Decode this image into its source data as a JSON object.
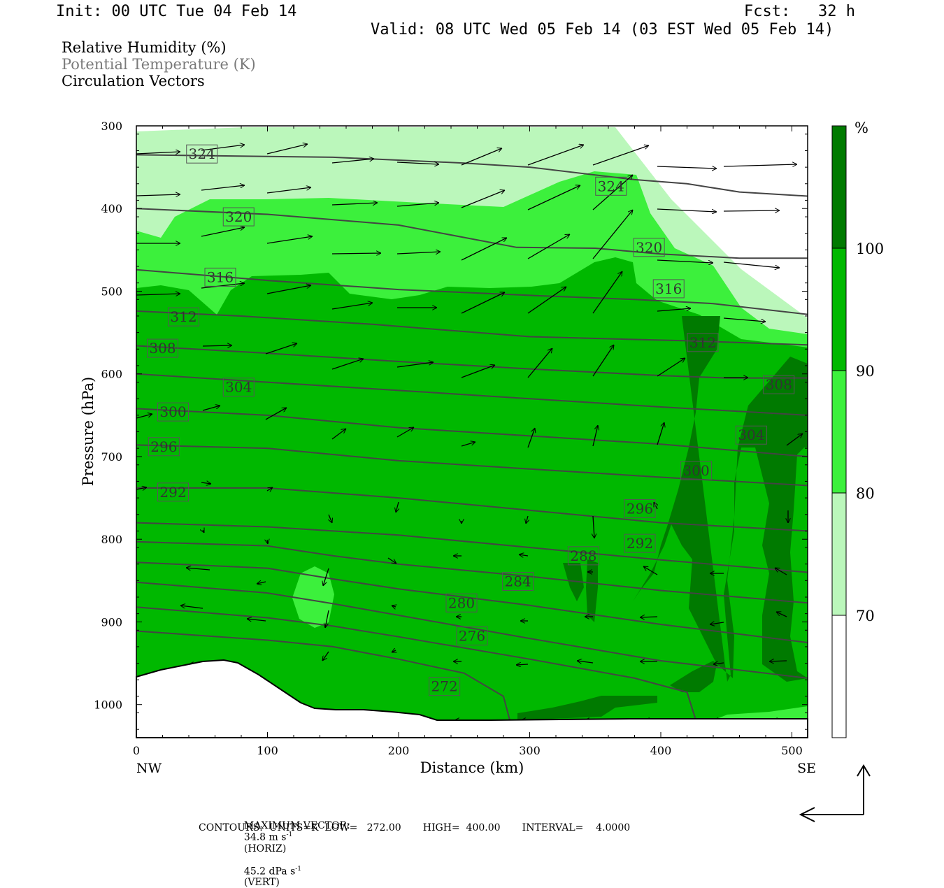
{
  "header": {
    "init": "Init: 00 UTC Tue 04 Feb 14",
    "fcst": "Fcst:   32 h",
    "valid": "Valid: 08 UTC Wed 05 Feb 14 (03 EST Wed 05 Feb 14)"
  },
  "legend": {
    "rh": "Relative Humidity (%)",
    "theta": "Potential Temperature (K)",
    "vectors": "Circulation Vectors"
  },
  "colors": {
    "rh70": "#bbf7bb",
    "rh80": "#3cf03c",
    "rh90": "#00b800",
    "rh100": "#007a00",
    "contour": "#444444",
    "label_box": "#555555"
  },
  "footer": {
    "max_vector_label": "MAXIMUM VECTOR:",
    "max_vector_horiz": "34.8 m s",
    "horiz_unit": "(HORIZ)",
    "max_vector_vert": "45.2 dPa s",
    "vert_unit": "(VERT)",
    "exponent": "-1",
    "contours": "CONTOURS:  UNITS=K  LOW=   272.00       HIGH=  400.00       INTERVAL=    4.0000"
  },
  "chart_data": {
    "type": "cross-section",
    "ylabel": "Pressure (hPa)",
    "xlabel": "Distance (km)",
    "y_ticks": [
      300,
      400,
      500,
      600,
      700,
      800,
      900,
      1000
    ],
    "x_ticks": [
      0,
      100,
      200,
      300,
      400,
      500
    ],
    "ylim": [
      300,
      1040
    ],
    "xlim": [
      0,
      512
    ],
    "x_end_labels": {
      "left": "NW",
      "right": "SE"
    },
    "colorbar": {
      "unit": "%",
      "levels": [
        70,
        80,
        90,
        100
      ],
      "labels": [
        "70",
        "80",
        "90",
        "100"
      ]
    },
    "theta_contours": {
      "unit": "K",
      "low": 272,
      "high": 400,
      "interval": 4,
      "labels": [
        {
          "text": "324",
          "x": 50,
          "p": 334
        },
        {
          "text": "324",
          "x": 362,
          "p": 373
        },
        {
          "text": "320",
          "x": 78,
          "p": 410
        },
        {
          "text": "320",
          "x": 391,
          "p": 447
        },
        {
          "text": "316",
          "x": 64,
          "p": 483
        },
        {
          "text": "316",
          "x": 406,
          "p": 497
        },
        {
          "text": "312",
          "x": 36,
          "p": 531
        },
        {
          "text": "312",
          "x": 432,
          "p": 562
        },
        {
          "text": "308",
          "x": 20,
          "p": 569
        },
        {
          "text": "308",
          "x": 490,
          "p": 613
        },
        {
          "text": "304",
          "x": 78,
          "p": 616
        },
        {
          "text": "304",
          "x": 469,
          "p": 674
        },
        {
          "text": "300",
          "x": 28,
          "p": 646
        },
        {
          "text": "300",
          "x": 427,
          "p": 717
        },
        {
          "text": "296",
          "x": 21,
          "p": 688
        },
        {
          "text": "296",
          "x": 384,
          "p": 763
        },
        {
          "text": "292",
          "x": 28,
          "p": 743
        },
        {
          "text": "292",
          "x": 384,
          "p": 805
        },
        {
          "text": "288",
          "x": 341,
          "p": 820
        },
        {
          "text": "284",
          "x": 291,
          "p": 851
        },
        {
          "text": "280",
          "x": 248,
          "p": 877
        },
        {
          "text": "276",
          "x": 256,
          "p": 917
        },
        {
          "text": "272",
          "x": 235,
          "p": 978
        }
      ]
    }
  }
}
